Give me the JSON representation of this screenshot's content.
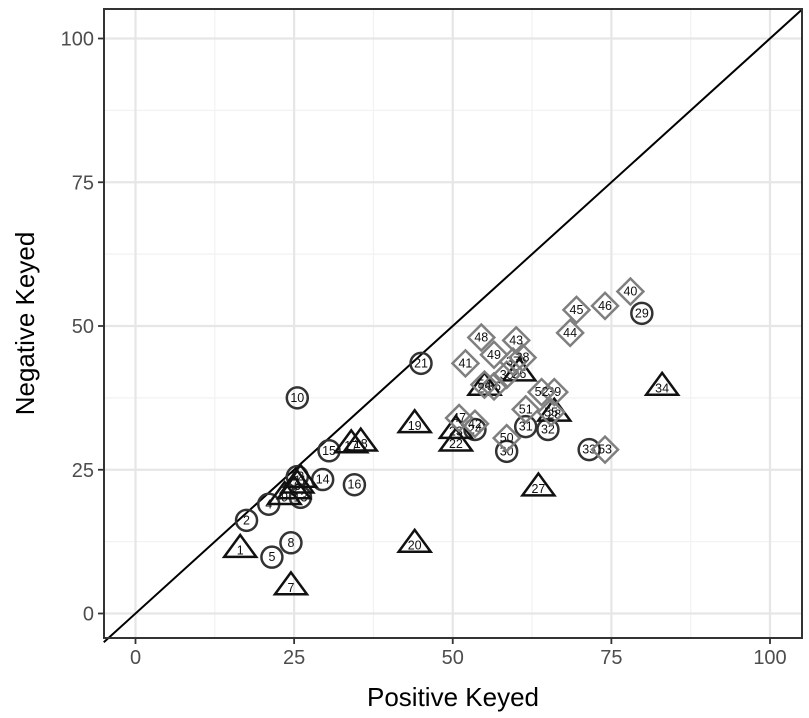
{
  "chart_data": {
    "type": "scatter",
    "xlabel": "Positive Keyed",
    "ylabel": "Negative Keyed",
    "xlim": [
      -5,
      105
    ],
    "ylim": [
      -5,
      105
    ],
    "x_ticks": [
      0,
      25,
      50,
      75,
      100
    ],
    "y_ticks": [
      0,
      25,
      50,
      75,
      100
    ],
    "x_tick_labels": [
      "0",
      "25",
      "50",
      "75",
      "100"
    ],
    "y_tick_labels": [
      "0",
      "25",
      "50",
      "75",
      "100"
    ],
    "grid": true,
    "reference_line": "y = x",
    "series": [
      {
        "marker": "circle",
        "color": "#333333",
        "points": [
          {
            "label": "2",
            "x": 17.5,
            "y": 16.2
          },
          {
            "label": "4",
            "x": 21.0,
            "y": 19.0
          },
          {
            "label": "5",
            "x": 21.5,
            "y": 9.8
          },
          {
            "label": "8",
            "x": 24.5,
            "y": 12.3
          },
          {
            "label": "10",
            "x": 25.5,
            "y": 37.5
          },
          {
            "label": "12",
            "x": 25.5,
            "y": 23.8
          },
          {
            "label": "13",
            "x": 26.0,
            "y": 20.2
          },
          {
            "label": "14",
            "x": 29.5,
            "y": 23.3
          },
          {
            "label": "15",
            "x": 30.5,
            "y": 28.3
          },
          {
            "label": "16",
            "x": 34.5,
            "y": 22.4
          },
          {
            "label": "21",
            "x": 45.0,
            "y": 43.5
          },
          {
            "label": "24",
            "x": 53.5,
            "y": 32.0
          },
          {
            "label": "29",
            "x": 79.8,
            "y": 52.2
          },
          {
            "label": "30",
            "x": 58.5,
            "y": 28.2
          },
          {
            "label": "31",
            "x": 61.5,
            "y": 32.5
          },
          {
            "label": "32",
            "x": 65.0,
            "y": 32.0
          },
          {
            "label": "33",
            "x": 71.5,
            "y": 28.5
          }
        ]
      },
      {
        "marker": "triangle",
        "color": "#111111",
        "points": [
          {
            "label": "1",
            "x": 16.5,
            "y": 11.3
          },
          {
            "label": "3",
            "x": 25.0,
            "y": 21.5
          },
          {
            "label": "6",
            "x": 25.5,
            "y": 22.5
          },
          {
            "label": "7",
            "x": 24.5,
            "y": 4.8
          },
          {
            "label": "9",
            "x": 23.5,
            "y": 20.5
          },
          {
            "label": "11",
            "x": 26.0,
            "y": 23.5
          },
          {
            "label": "17",
            "x": 34.0,
            "y": 29.5
          },
          {
            "label": "18",
            "x": 35.5,
            "y": 29.8
          },
          {
            "label": "19",
            "x": 44.0,
            "y": 33.0
          },
          {
            "label": "20",
            "x": 44.0,
            "y": 12.2
          },
          {
            "label": "22",
            "x": 50.5,
            "y": 29.8
          },
          {
            "label": "23",
            "x": 50.5,
            "y": 32.0
          },
          {
            "label": "25",
            "x": 55.0,
            "y": 39.5
          },
          {
            "label": "26",
            "x": 60.5,
            "y": 42.0
          },
          {
            "label": "27",
            "x": 63.5,
            "y": 22.0
          },
          {
            "label": "28",
            "x": 66.0,
            "y": 35.0
          },
          {
            "label": "34",
            "x": 83.0,
            "y": 39.5
          }
        ]
      },
      {
        "marker": "diamond",
        "color": "#7f7f7f",
        "points": [
          {
            "label": "35",
            "x": 58.5,
            "y": 41.5
          },
          {
            "label": "36",
            "x": 56.5,
            "y": 39.5
          },
          {
            "label": "37",
            "x": 59.5,
            "y": 43.8
          },
          {
            "label": "38",
            "x": 61.0,
            "y": 44.5
          },
          {
            "label": "39",
            "x": 66.0,
            "y": 38.5
          },
          {
            "label": "40",
            "x": 78.0,
            "y": 56.0
          },
          {
            "label": "41",
            "x": 52.0,
            "y": 43.5
          },
          {
            "label": "42",
            "x": 53.5,
            "y": 33.0
          },
          {
            "label": "43",
            "x": 60.0,
            "y": 47.5
          },
          {
            "label": "44",
            "x": 68.5,
            "y": 48.8
          },
          {
            "label": "45",
            "x": 69.5,
            "y": 52.8
          },
          {
            "label": "46",
            "x": 74.0,
            "y": 53.5
          },
          {
            "label": "47",
            "x": 51.0,
            "y": 34.0
          },
          {
            "label": "48",
            "x": 54.5,
            "y": 48.0
          },
          {
            "label": "49",
            "x": 56.5,
            "y": 45.0
          },
          {
            "label": "50",
            "x": 58.5,
            "y": 30.5
          },
          {
            "label": "51",
            "x": 61.5,
            "y": 35.5
          },
          {
            "label": "52",
            "x": 64.0,
            "y": 38.5
          },
          {
            "label": "53",
            "x": 74.0,
            "y": 28.5
          },
          {
            "label": "54",
            "x": 55.0,
            "y": 39.8
          },
          {
            "label": "55",
            "x": 65.5,
            "y": 35.0
          }
        ]
      }
    ]
  }
}
